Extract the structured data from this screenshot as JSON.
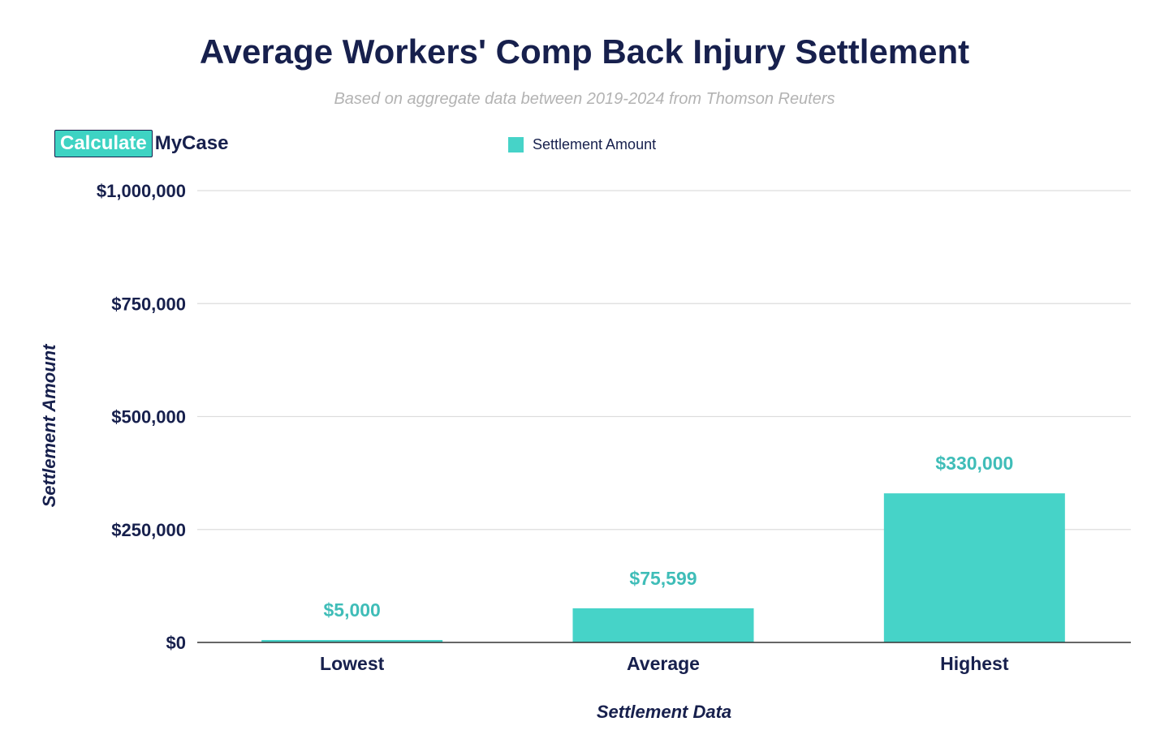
{
  "header": {
    "title": "Average Workers' Comp Back Injury Settlement",
    "subtitle": "Based on aggregate data between 2019-2024 from Thomson Reuters"
  },
  "logo": {
    "part1": "Calculate",
    "part2": "MyCase"
  },
  "colors": {
    "bar": "#46d3c8",
    "data_label": "#3fbdb8",
    "text": "#17204d",
    "grid": "#dddddd",
    "axis": "#333333"
  },
  "chart_data": {
    "type": "bar",
    "title": "Average Workers' Comp Back Injury Settlement",
    "subtitle": "Based on aggregate data between 2019-2024 from Thomson Reuters",
    "xlabel": "Settlement Data",
    "ylabel": "Settlement Amount",
    "categories": [
      "Lowest",
      "Average",
      "Highest"
    ],
    "series": [
      {
        "name": "Settlement Amount",
        "values": [
          5000,
          75599,
          330000
        ],
        "data_labels": [
          "$5,000",
          "$75,599",
          "$330,000"
        ]
      }
    ],
    "ylim": [
      0,
      1000000
    ],
    "yticks": [
      0,
      250000,
      500000,
      750000,
      1000000
    ],
    "ytick_labels": [
      "$0",
      "$250,000",
      "$500,000",
      "$750,000",
      "$1,000,000"
    ],
    "grid": true,
    "legend": "top-center"
  }
}
